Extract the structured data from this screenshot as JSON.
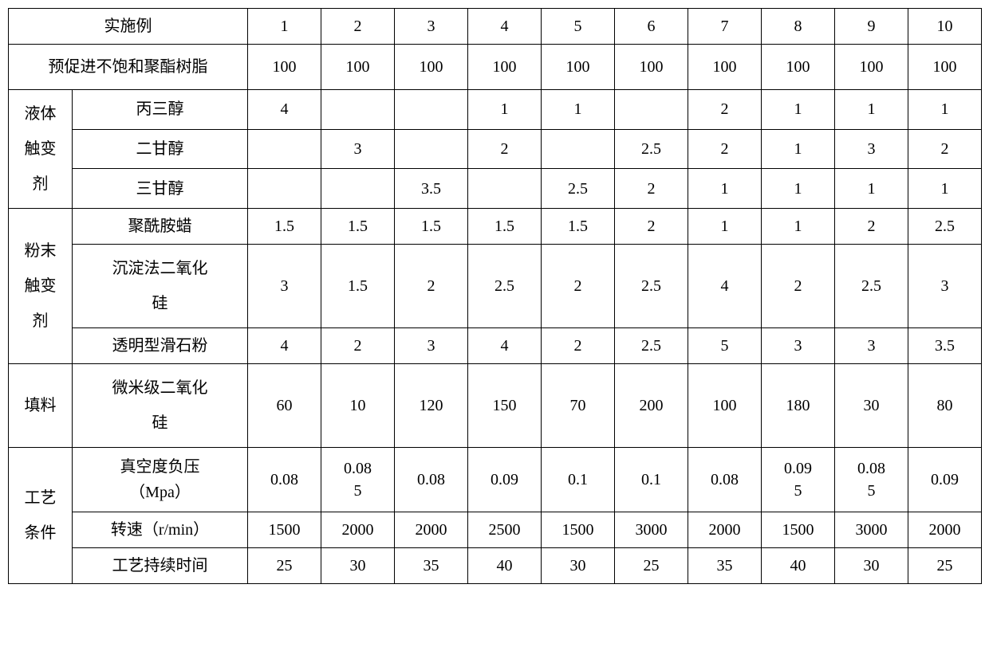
{
  "header": {
    "row_label": "实施例",
    "cols": [
      "1",
      "2",
      "3",
      "4",
      "5",
      "6",
      "7",
      "8",
      "9",
      "10"
    ]
  },
  "resin": {
    "label": "预促进不饱和聚酯树脂",
    "values": [
      "100",
      "100",
      "100",
      "100",
      "100",
      "100",
      "100",
      "100",
      "100",
      "100"
    ]
  },
  "liquid_thixo": {
    "group_label_lines": [
      "液体",
      "触变",
      "剂"
    ],
    "rows": [
      {
        "label": "丙三醇",
        "values": [
          "4",
          "",
          "",
          "1",
          "1",
          "",
          "2",
          "1",
          "1",
          "1"
        ]
      },
      {
        "label": "二甘醇",
        "values": [
          "",
          "3",
          "",
          "2",
          "",
          "2.5",
          "2",
          "1",
          "3",
          "2"
        ]
      },
      {
        "label": "三甘醇",
        "values": [
          "",
          "",
          "3.5",
          "",
          "2.5",
          "2",
          "1",
          "1",
          "1",
          "1"
        ]
      }
    ]
  },
  "powder_thixo": {
    "group_label_lines": [
      "粉末",
      "触变",
      "剂"
    ],
    "rows": [
      {
        "label": "聚酰胺蜡",
        "values": [
          "1.5",
          "1.5",
          "1.5",
          "1.5",
          "1.5",
          "2",
          "1",
          "1",
          "2",
          "2.5"
        ]
      },
      {
        "label_lines": [
          "沉淀法二氧化",
          "硅"
        ],
        "values": [
          "3",
          "1.5",
          "2",
          "2.5",
          "2",
          "2.5",
          "4",
          "2",
          "2.5",
          "3"
        ]
      },
      {
        "label": "透明型滑石粉",
        "values": [
          "4",
          "2",
          "3",
          "4",
          "2",
          "2.5",
          "5",
          "3",
          "3",
          "3.5"
        ]
      }
    ]
  },
  "filler": {
    "group_label": "填料",
    "row": {
      "label_lines": [
        "微米级二氧化",
        "硅"
      ],
      "values": [
        "60",
        "10",
        "120",
        "150",
        "70",
        "200",
        "100",
        "180",
        "30",
        "80"
      ]
    }
  },
  "process": {
    "group_label_lines": [
      "工艺",
      "条件"
    ],
    "rows": [
      {
        "label_lines": [
          "真空度负压",
          "（Mpa）"
        ],
        "values": [
          "0.08",
          "0.08\n5",
          "0.08",
          "0.09",
          "0.1",
          "0.1",
          "0.08",
          "0.09\n5",
          "0.08\n5",
          "0.09"
        ]
      },
      {
        "label": "转速（r/min）",
        "values": [
          "1500",
          "2000",
          "2000",
          "2500",
          "1500",
          "3000",
          "2000",
          "1500",
          "3000",
          "2000"
        ]
      },
      {
        "label": "工艺持续时间",
        "values": [
          "25",
          "30",
          "35",
          "40",
          "30",
          "25",
          "35",
          "40",
          "30",
          "25"
        ]
      }
    ]
  }
}
